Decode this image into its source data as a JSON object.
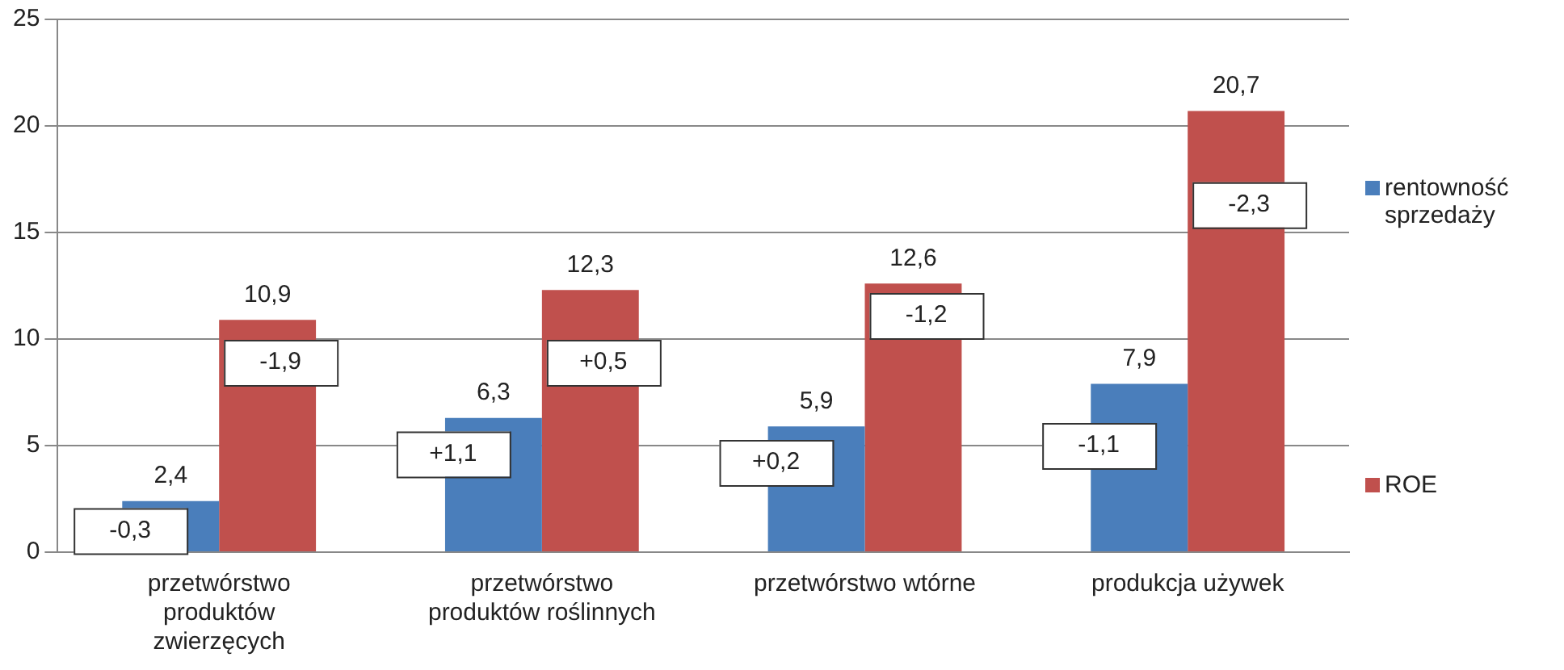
{
  "chart_data": {
    "type": "bar",
    "categories": [
      "przetwórstwo produktów zwierzęcych",
      "przetwórstwo produktów roślinnych",
      "przetwórstwo wtórne",
      "produkcja używek"
    ],
    "series": [
      {
        "name": "rentowność sprzedaży",
        "color": "#4a7ebb",
        "values": [
          2.4,
          6.3,
          5.9,
          7.9
        ],
        "value_labels": [
          "2,4",
          "6,3",
          "5,9",
          "7,9"
        ]
      },
      {
        "name": "ROE",
        "color": "#c0504d",
        "values": [
          10.9,
          12.3,
          12.6,
          20.7
        ],
        "value_labels": [
          "10,9",
          "12,3",
          "12,6",
          "20,7"
        ]
      }
    ],
    "ylim": [
      0,
      25
    ],
    "yticks": [
      0,
      5,
      10,
      15,
      20,
      25
    ],
    "grid": "y",
    "legend": "right",
    "annotations": [
      {
        "text": "-0,3",
        "x": "przetwórstwo produktów zwierzęcych",
        "y": 1.0
      },
      {
        "text": "-1,9",
        "x": "przetwórstwo produktów zwierzęcych",
        "y": 8.9
      },
      {
        "text": "+1,1",
        "x": "przetwórstwo produktów roślinnych",
        "y": 4.6
      },
      {
        "text": "+0,5",
        "x": "przetwórstwo produktów roślinnych",
        "y": 8.9
      },
      {
        "text": "+0,2",
        "x": "przetwórstwo wtórne",
        "y": 4.2
      },
      {
        "text": "-1,2",
        "x": "przetwórstwo wtórne",
        "y": 11.1
      },
      {
        "text": "-1,1",
        "x": "produkcja używek",
        "y": 5.0
      },
      {
        "text": "-2,3",
        "x": "produkcja używek",
        "y": 16.3
      }
    ]
  }
}
